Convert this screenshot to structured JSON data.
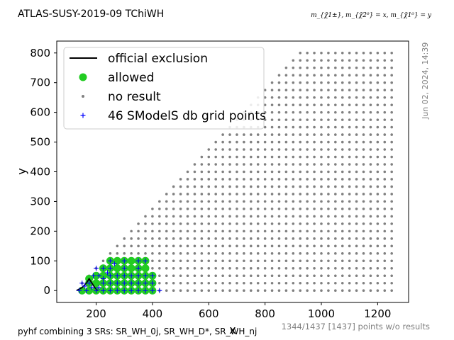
{
  "title": "ATLAS-SUSY-2019-09 TChiWH",
  "mass_label": "m_{χ̃1±}, m_{χ̃2⁰} = x, m_{χ̃1⁰} = y",
  "date_stamp": "Jun 02, 2024, 14:39",
  "footer_left": "pyhf combining 3 SRs: SR_WH_0j, SR_WH_D*, SR_WH_nj",
  "footer_right": "1344/1437 [1437] points w/o results",
  "colors": {
    "allowed": "#22cc22",
    "no_result": "#808080",
    "grid_points": "#0000ff",
    "exclusion": "#000000"
  },
  "chart_data": {
    "type": "scatter",
    "xlabel": "x",
    "ylabel": "y",
    "xlim": [
      60,
      1310
    ],
    "ylim": [
      -40,
      840
    ],
    "x_ticks": [
      200,
      400,
      600,
      800,
      1000,
      1200
    ],
    "y_ticks": [
      0,
      100,
      200,
      300,
      400,
      500,
      600,
      700,
      800
    ],
    "grid": false,
    "legend_position": "top-left",
    "legend": [
      {
        "label": "official exclusion",
        "marker": "line"
      },
      {
        "label": "allowed",
        "marker": "big-dot"
      },
      {
        "label": "no result",
        "marker": "small-dot"
      },
      {
        "label": "46 SModelS db grid points",
        "marker": "plus"
      }
    ],
    "no_result_region": {
      "x_min": 150,
      "x_max": 1250,
      "step": 25,
      "y_max_rule": "y <= x - 125, y <= 800",
      "y_rows": [
        0,
        25,
        50,
        75,
        100,
        125,
        150,
        175,
        200,
        225,
        250,
        275,
        300,
        325,
        350,
        375,
        400,
        425,
        450,
        475,
        500,
        525,
        550,
        575,
        600,
        625,
        650,
        675,
        700,
        725,
        750,
        775,
        800
      ],
      "extra_y0_x": [
        150,
        175,
        200,
        225,
        250,
        275,
        300,
        325,
        350,
        375,
        400,
        425,
        450,
        475,
        500,
        525,
        550,
        575,
        600,
        625,
        650,
        675,
        700,
        725,
        750,
        775,
        800,
        825,
        850,
        875,
        900,
        925,
        950,
        975,
        1000,
        1025,
        1050,
        1075,
        1100,
        1125,
        1150,
        1175,
        1200,
        1225,
        1250
      ]
    },
    "allowed_points": [
      [
        150,
        0
      ],
      [
        175,
        0
      ],
      [
        200,
        0
      ],
      [
        225,
        0
      ],
      [
        250,
        0
      ],
      [
        275,
        0
      ],
      [
        300,
        0
      ],
      [
        325,
        0
      ],
      [
        350,
        0
      ],
      [
        375,
        0
      ],
      [
        400,
        0
      ],
      [
        175,
        25
      ],
      [
        200,
        25
      ],
      [
        225,
        25
      ],
      [
        250,
        25
      ],
      [
        275,
        25
      ],
      [
        300,
        25
      ],
      [
        325,
        25
      ],
      [
        350,
        25
      ],
      [
        375,
        25
      ],
      [
        400,
        25
      ],
      [
        175,
        40
      ],
      [
        200,
        50
      ],
      [
        225,
        50
      ],
      [
        250,
        50
      ],
      [
        275,
        50
      ],
      [
        300,
        50
      ],
      [
        325,
        50
      ],
      [
        350,
        50
      ],
      [
        375,
        50
      ],
      [
        400,
        50
      ],
      [
        225,
        75
      ],
      [
        250,
        75
      ],
      [
        275,
        75
      ],
      [
        300,
        75
      ],
      [
        325,
        75
      ],
      [
        350,
        75
      ],
      [
        375,
        75
      ],
      [
        250,
        100
      ],
      [
        275,
        100
      ],
      [
        300,
        100
      ],
      [
        325,
        100
      ],
      [
        350,
        100
      ],
      [
        375,
        100
      ]
    ],
    "grid_points": [
      [
        140,
        0
      ],
      [
        150,
        25
      ],
      [
        165,
        0
      ],
      [
        175,
        25
      ],
      [
        200,
        0
      ],
      [
        225,
        0
      ],
      [
        250,
        0
      ],
      [
        275,
        0
      ],
      [
        300,
        0
      ],
      [
        325,
        0
      ],
      [
        350,
        0
      ],
      [
        375,
        0
      ],
      [
        400,
        0
      ],
      [
        425,
        0
      ],
      [
        190,
        50
      ],
      [
        210,
        50
      ],
      [
        225,
        25
      ],
      [
        250,
        25
      ],
      [
        300,
        25
      ],
      [
        350,
        25
      ],
      [
        400,
        25
      ],
      [
        200,
        75
      ],
      [
        225,
        75
      ],
      [
        250,
        50
      ],
      [
        300,
        50
      ],
      [
        350,
        50
      ],
      [
        400,
        50
      ],
      [
        250,
        75
      ],
      [
        300,
        75
      ],
      [
        350,
        75
      ],
      [
        250,
        100
      ],
      [
        300,
        100
      ],
      [
        350,
        100
      ],
      [
        375,
        100
      ],
      [
        225,
        40
      ],
      [
        275,
        50
      ],
      [
        325,
        50
      ],
      [
        375,
        50
      ],
      [
        275,
        25
      ],
      [
        325,
        25
      ],
      [
        375,
        25
      ],
      [
        185,
        10
      ],
      [
        160,
        15
      ],
      [
        210,
        10
      ],
      [
        240,
        60
      ],
      [
        265,
        90
      ]
    ],
    "exclusion_line": [
      [
        130,
        0
      ],
      [
        150,
        10
      ],
      [
        165,
        25
      ],
      [
        175,
        40
      ],
      [
        185,
        25
      ],
      [
        195,
        10
      ],
      [
        205,
        0
      ]
    ]
  }
}
